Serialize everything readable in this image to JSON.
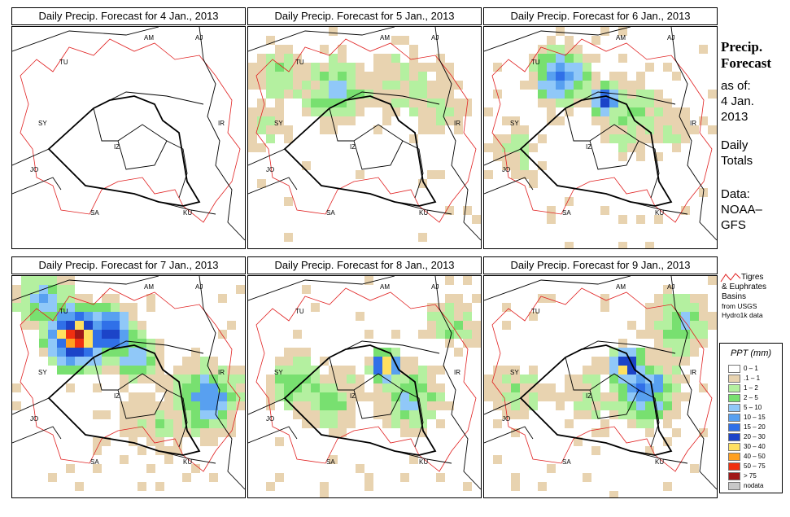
{
  "panels": [
    {
      "title": "Daily Precip. Forecast for  4 Jan., 2013",
      "day": 0
    },
    {
      "title": "Daily Precip. Forecast for  5 Jan., 2013",
      "day": 1
    },
    {
      "title": "Daily Precip. Forecast for  6 Jan., 2013",
      "day": 2
    },
    {
      "title": "Daily Precip. Forecast for  7 Jan., 2013",
      "day": 3
    },
    {
      "title": "Daily Precip. Forecast for  8 Jan., 2013",
      "day": 4
    },
    {
      "title": "Daily Precip. Forecast for  9 Jan., 2013",
      "day": 5
    }
  ],
  "map_labels": [
    "AM",
    "AJ",
    "TU",
    "SY",
    "IR",
    "IZ",
    "JO",
    "SA",
    "KU"
  ],
  "sidebar": {
    "title_line1": "Precip.",
    "title_line2": "Forecast",
    "asof": "as of:",
    "date_line1": "4 Jan.",
    "date_line2": "2013",
    "daily1": "Daily",
    "daily2": "Totals",
    "data1": "Data:",
    "data2": "NOAA–",
    "data3": "GFS"
  },
  "basin_legend": {
    "line1": "Tigres",
    "line2": "& Euphrates",
    "line3": "Basins",
    "line4": "from USGS",
    "line5": "Hydro1k data",
    "line_color": "#e02020"
  },
  "legend": {
    "title": "PPT (mm)",
    "classes": [
      {
        "label": "0 – 1",
        "color": "#ffffff"
      },
      {
        "label": ".1 – 1",
        "color": "#e8d3b0"
      },
      {
        "label": "1 – 2",
        "color": "#b4f0a0"
      },
      {
        "label": "2 – 5",
        "color": "#78e070"
      },
      {
        "label": "5 – 10",
        "color": "#90c8f8"
      },
      {
        "label": "10 – 15",
        "color": "#58a0f0"
      },
      {
        "label": "15 – 20",
        "color": "#3070e8"
      },
      {
        "label": "20 – 30",
        "color": "#1c44c8"
      },
      {
        "label": "30 – 40",
        "color": "#ffe060"
      },
      {
        "label": "40 – 50",
        "color": "#ffa020"
      },
      {
        "label": "50 – 75",
        "color": "#f03010"
      },
      {
        "label": "> 75",
        "color": "#a01818"
      },
      {
        "label": "nodata",
        "color": "#c8c8c8"
      }
    ]
  }
}
